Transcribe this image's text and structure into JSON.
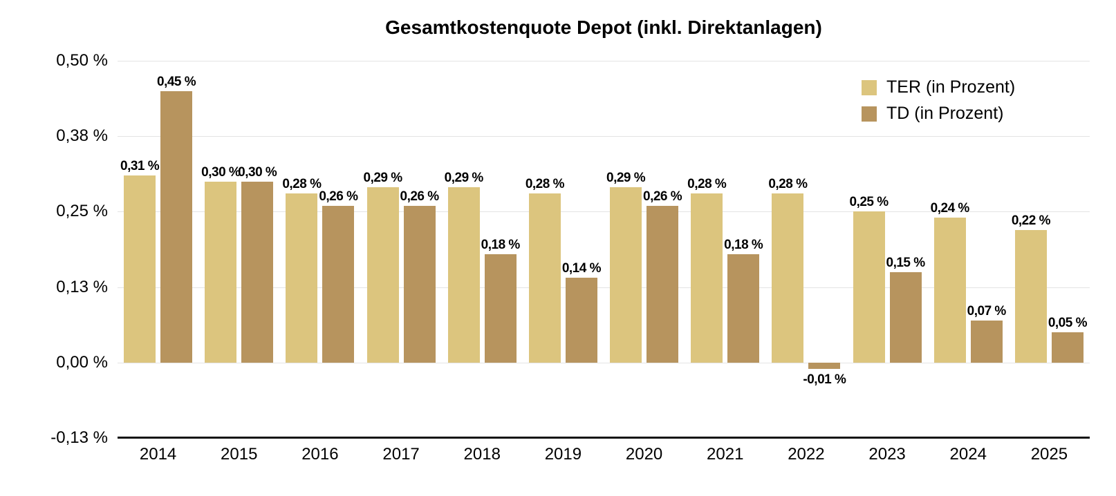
{
  "title": "Gesamtkostenquote Depot (inkl. Direktanlagen)",
  "colors": {
    "ter": "#DCC57E",
    "td": "#B7945E",
    "grid": "#E3E3E3",
    "axis": "#111111",
    "background": "#FFFFFF",
    "text": "#000000"
  },
  "legend": {
    "items": [
      {
        "label": "TER (in Prozent)",
        "color": "#DCC57E"
      },
      {
        "label": "TD (in Prozent)",
        "color": "#B7945E"
      }
    ]
  },
  "chart_data": {
    "type": "bar",
    "title": "Gesamtkostenquote Depot (inkl. Direktanlagen)",
    "categories": [
      "2014",
      "2015",
      "2016",
      "2017",
      "2018",
      "2019",
      "2020",
      "2021",
      "2022",
      "2023",
      "2024",
      "2025"
    ],
    "series": [
      {
        "name": "TER (in Prozent)",
        "key": "ter",
        "color": "#DCC57E",
        "values": [
          0.31,
          0.3,
          0.28,
          0.29,
          0.29,
          0.28,
          0.29,
          0.28,
          0.28,
          0.25,
          0.24,
          0.22
        ],
        "labels": [
          "0,31 %",
          "0,30 %",
          "0,28 %",
          "0,29 %",
          "0,29 %",
          "0,28 %",
          "0,29 %",
          "0,28 %",
          "0,28 %",
          "0,25 %",
          "0,24 %",
          "0,22 %"
        ]
      },
      {
        "name": "TD (in Prozent)",
        "key": "td",
        "color": "#B7945E",
        "values": [
          0.45,
          0.3,
          0.26,
          0.26,
          0.18,
          0.14,
          0.26,
          0.18,
          -0.01,
          0.15,
          0.07,
          0.05
        ],
        "labels": [
          "0,45 %",
          "0,30 %",
          "0,26 %",
          "0,26 %",
          "0,18 %",
          "0,14 %",
          "0,26 %",
          "0,18 %",
          "-0,01 %",
          "0,15 %",
          "0,07 %",
          "0,05 %"
        ]
      }
    ],
    "xlabel": "",
    "ylabel": "",
    "ylim": [
      -0.125,
      0.5
    ],
    "yticks": [
      {
        "value": 0.5,
        "label": "0,50 %"
      },
      {
        "value": 0.375,
        "label": "0,38 %"
      },
      {
        "value": 0.25,
        "label": "0,25 %"
      },
      {
        "value": 0.125,
        "label": "0,13 %"
      },
      {
        "value": 0.0,
        "label": "0,00 %"
      },
      {
        "value": -0.125,
        "label": "-0,13 %"
      }
    ],
    "grid": true,
    "legend_position": "top-right"
  }
}
